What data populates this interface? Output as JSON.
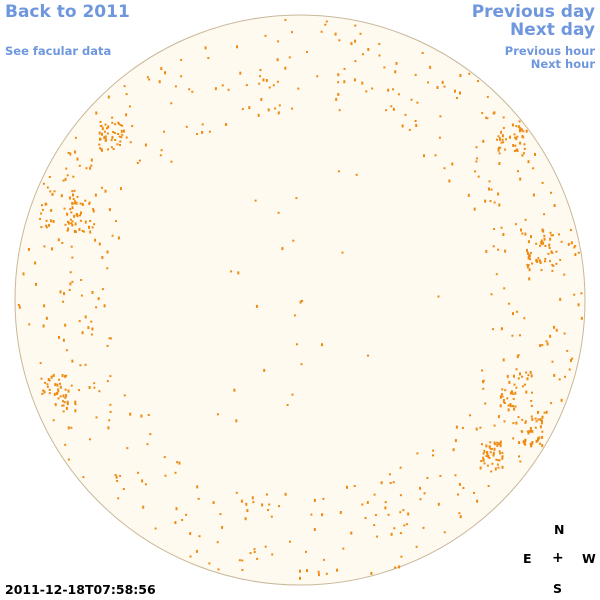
{
  "nav": {
    "back": "Back to 2011",
    "facular": "See facular data",
    "prev_day": "Previous day",
    "next_day": "Next day",
    "prev_hour": "Previous hour",
    "next_hour": "Next hour"
  },
  "timestamp": "2011-12-18T07:58:56",
  "compass": {
    "n": "N",
    "e": "E",
    "center": "+",
    "w": "W",
    "s": "S"
  },
  "colors": {
    "link": "#6f97dd",
    "disk_fill": "#fffaf0",
    "disk_edge": "#c9b79a",
    "facula": "#ee8a12"
  }
}
